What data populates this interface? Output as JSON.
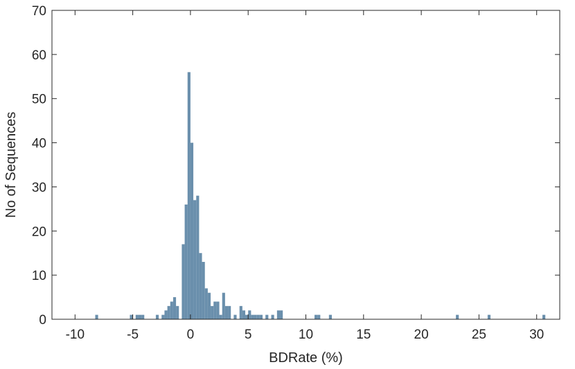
{
  "chart_data": {
    "type": "bar",
    "title": "",
    "xlabel": "BDRate (%)",
    "ylabel": "No of Sequences",
    "xlim": [
      -12,
      32
    ],
    "ylim": [
      0,
      70
    ],
    "xticks": [
      -10,
      -5,
      0,
      5,
      10,
      15,
      20,
      25,
      30
    ],
    "yticks": [
      0,
      10,
      20,
      30,
      40,
      50,
      60,
      70
    ],
    "xtick_labels": [
      "-10",
      "-5",
      "0",
      "5",
      "10",
      "15",
      "20",
      "25",
      "30"
    ],
    "ytick_labels": [
      "0",
      "10",
      "20",
      "30",
      "40",
      "50",
      "60",
      "70"
    ],
    "grid": false,
    "bar_color": "#6a8fac",
    "bin_width": 0.25,
    "bins": [
      {
        "x": -8.125,
        "value": 1
      },
      {
        "x": -5.125,
        "value": 1
      },
      {
        "x": -4.625,
        "value": 1
      },
      {
        "x": -4.375,
        "value": 1
      },
      {
        "x": -4.125,
        "value": 1
      },
      {
        "x": -2.875,
        "value": 1
      },
      {
        "x": -2.375,
        "value": 1
      },
      {
        "x": -2.125,
        "value": 2
      },
      {
        "x": -1.875,
        "value": 3
      },
      {
        "x": -1.625,
        "value": 4
      },
      {
        "x": -1.375,
        "value": 5
      },
      {
        "x": -1.125,
        "value": 3
      },
      {
        "x": -0.625,
        "value": 17
      },
      {
        "x": -0.375,
        "value": 26
      },
      {
        "x": -0.125,
        "value": 56
      },
      {
        "x": 0.125,
        "value": 40
      },
      {
        "x": 0.375,
        "value": 27
      },
      {
        "x": 0.625,
        "value": 28
      },
      {
        "x": 0.875,
        "value": 15
      },
      {
        "x": 1.125,
        "value": 13
      },
      {
        "x": 1.375,
        "value": 7
      },
      {
        "x": 1.625,
        "value": 6
      },
      {
        "x": 1.875,
        "value": 3
      },
      {
        "x": 2.125,
        "value": 4
      },
      {
        "x": 2.375,
        "value": 4
      },
      {
        "x": 2.625,
        "value": 1
      },
      {
        "x": 2.875,
        "value": 6
      },
      {
        "x": 3.125,
        "value": 3
      },
      {
        "x": 3.375,
        "value": 3
      },
      {
        "x": 3.875,
        "value": 1
      },
      {
        "x": 4.375,
        "value": 3
      },
      {
        "x": 4.625,
        "value": 2
      },
      {
        "x": 4.875,
        "value": 1
      },
      {
        "x": 5.125,
        "value": 2
      },
      {
        "x": 5.375,
        "value": 1
      },
      {
        "x": 5.625,
        "value": 1
      },
      {
        "x": 5.875,
        "value": 1
      },
      {
        "x": 6.125,
        "value": 1
      },
      {
        "x": 6.625,
        "value": 1
      },
      {
        "x": 7.125,
        "value": 1
      },
      {
        "x": 7.625,
        "value": 2
      },
      {
        "x": 7.875,
        "value": 2
      },
      {
        "x": 10.875,
        "value": 1
      },
      {
        "x": 11.125,
        "value": 1
      },
      {
        "x": 12.125,
        "value": 1
      },
      {
        "x": 23.125,
        "value": 1
      },
      {
        "x": 25.875,
        "value": 1
      },
      {
        "x": 30.625,
        "value": 1
      }
    ]
  }
}
